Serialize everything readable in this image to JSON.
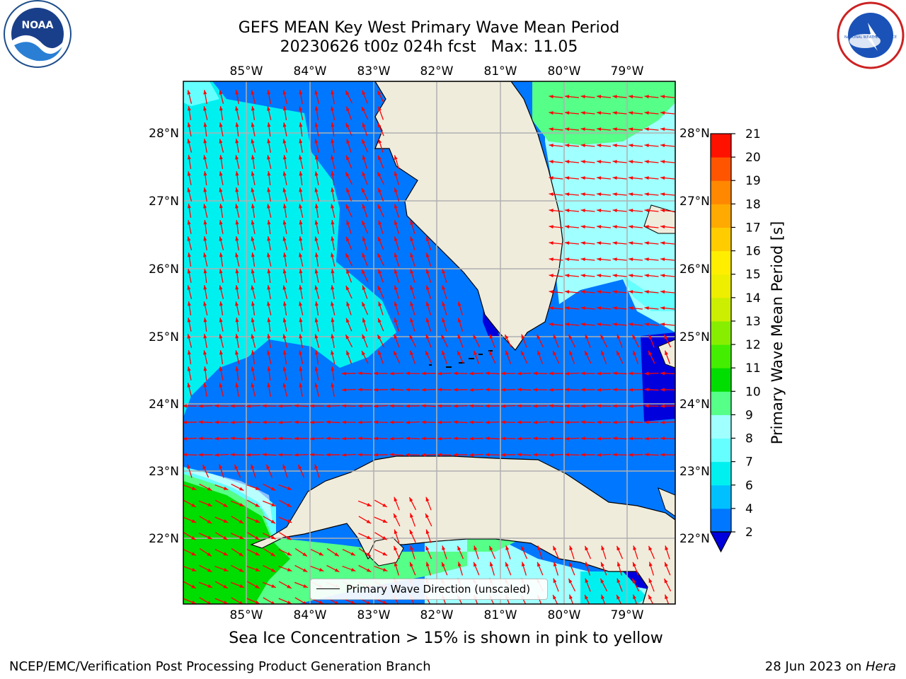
{
  "title": {
    "line1": "GEFS MEAN Key West Primary Wave Mean Period",
    "line2": "20230626 t00z 024h fcst   Max: 11.05"
  },
  "logos": {
    "noaa_text": "NOAA",
    "nws_text": "NATIONAL WEATHER SERVICE"
  },
  "map": {
    "lon_labels": [
      "85°W",
      "84°W",
      "83°W",
      "82°W",
      "81°W",
      "80°W",
      "79°W"
    ],
    "lat_labels": [
      "28°N",
      "27°N",
      "26°N",
      "25°N",
      "24°N",
      "23°N",
      "22°N"
    ],
    "legend_label": "Primary Wave Direction (unscaled)",
    "colors": {
      "land": "#efecdc",
      "arrow": "#ff0000",
      "grid": "#b0b0b0"
    }
  },
  "colorbar": {
    "title": "Primary Wave Mean Period [s]",
    "levels": [
      "2",
      "4",
      "6",
      "7",
      "8",
      "9",
      "10",
      "11",
      "12",
      "13",
      "14",
      "15",
      "16",
      "17",
      "18",
      "19",
      "20",
      "21"
    ],
    "colors": [
      "#0077ff",
      "#00c0ff",
      "#00f0f0",
      "#66ffff",
      "#a0ffff",
      "#55ff88",
      "#00dd00",
      "#44ee00",
      "#88ee00",
      "#ccee00",
      "#eeee00",
      "#ffee00",
      "#ffcc00",
      "#ffaa00",
      "#ff8800",
      "#ff5500",
      "#ff1100"
    ],
    "under_color": "#0000dd"
  },
  "footer": {
    "note": "Sea Ice Concentration > 15% is shown in pink to yellow",
    "left": "NCEP/EMC/Verification Post Processing Product Generation Branch",
    "right_date": "28 Jun 2023 on ",
    "right_host": "Hera"
  }
}
